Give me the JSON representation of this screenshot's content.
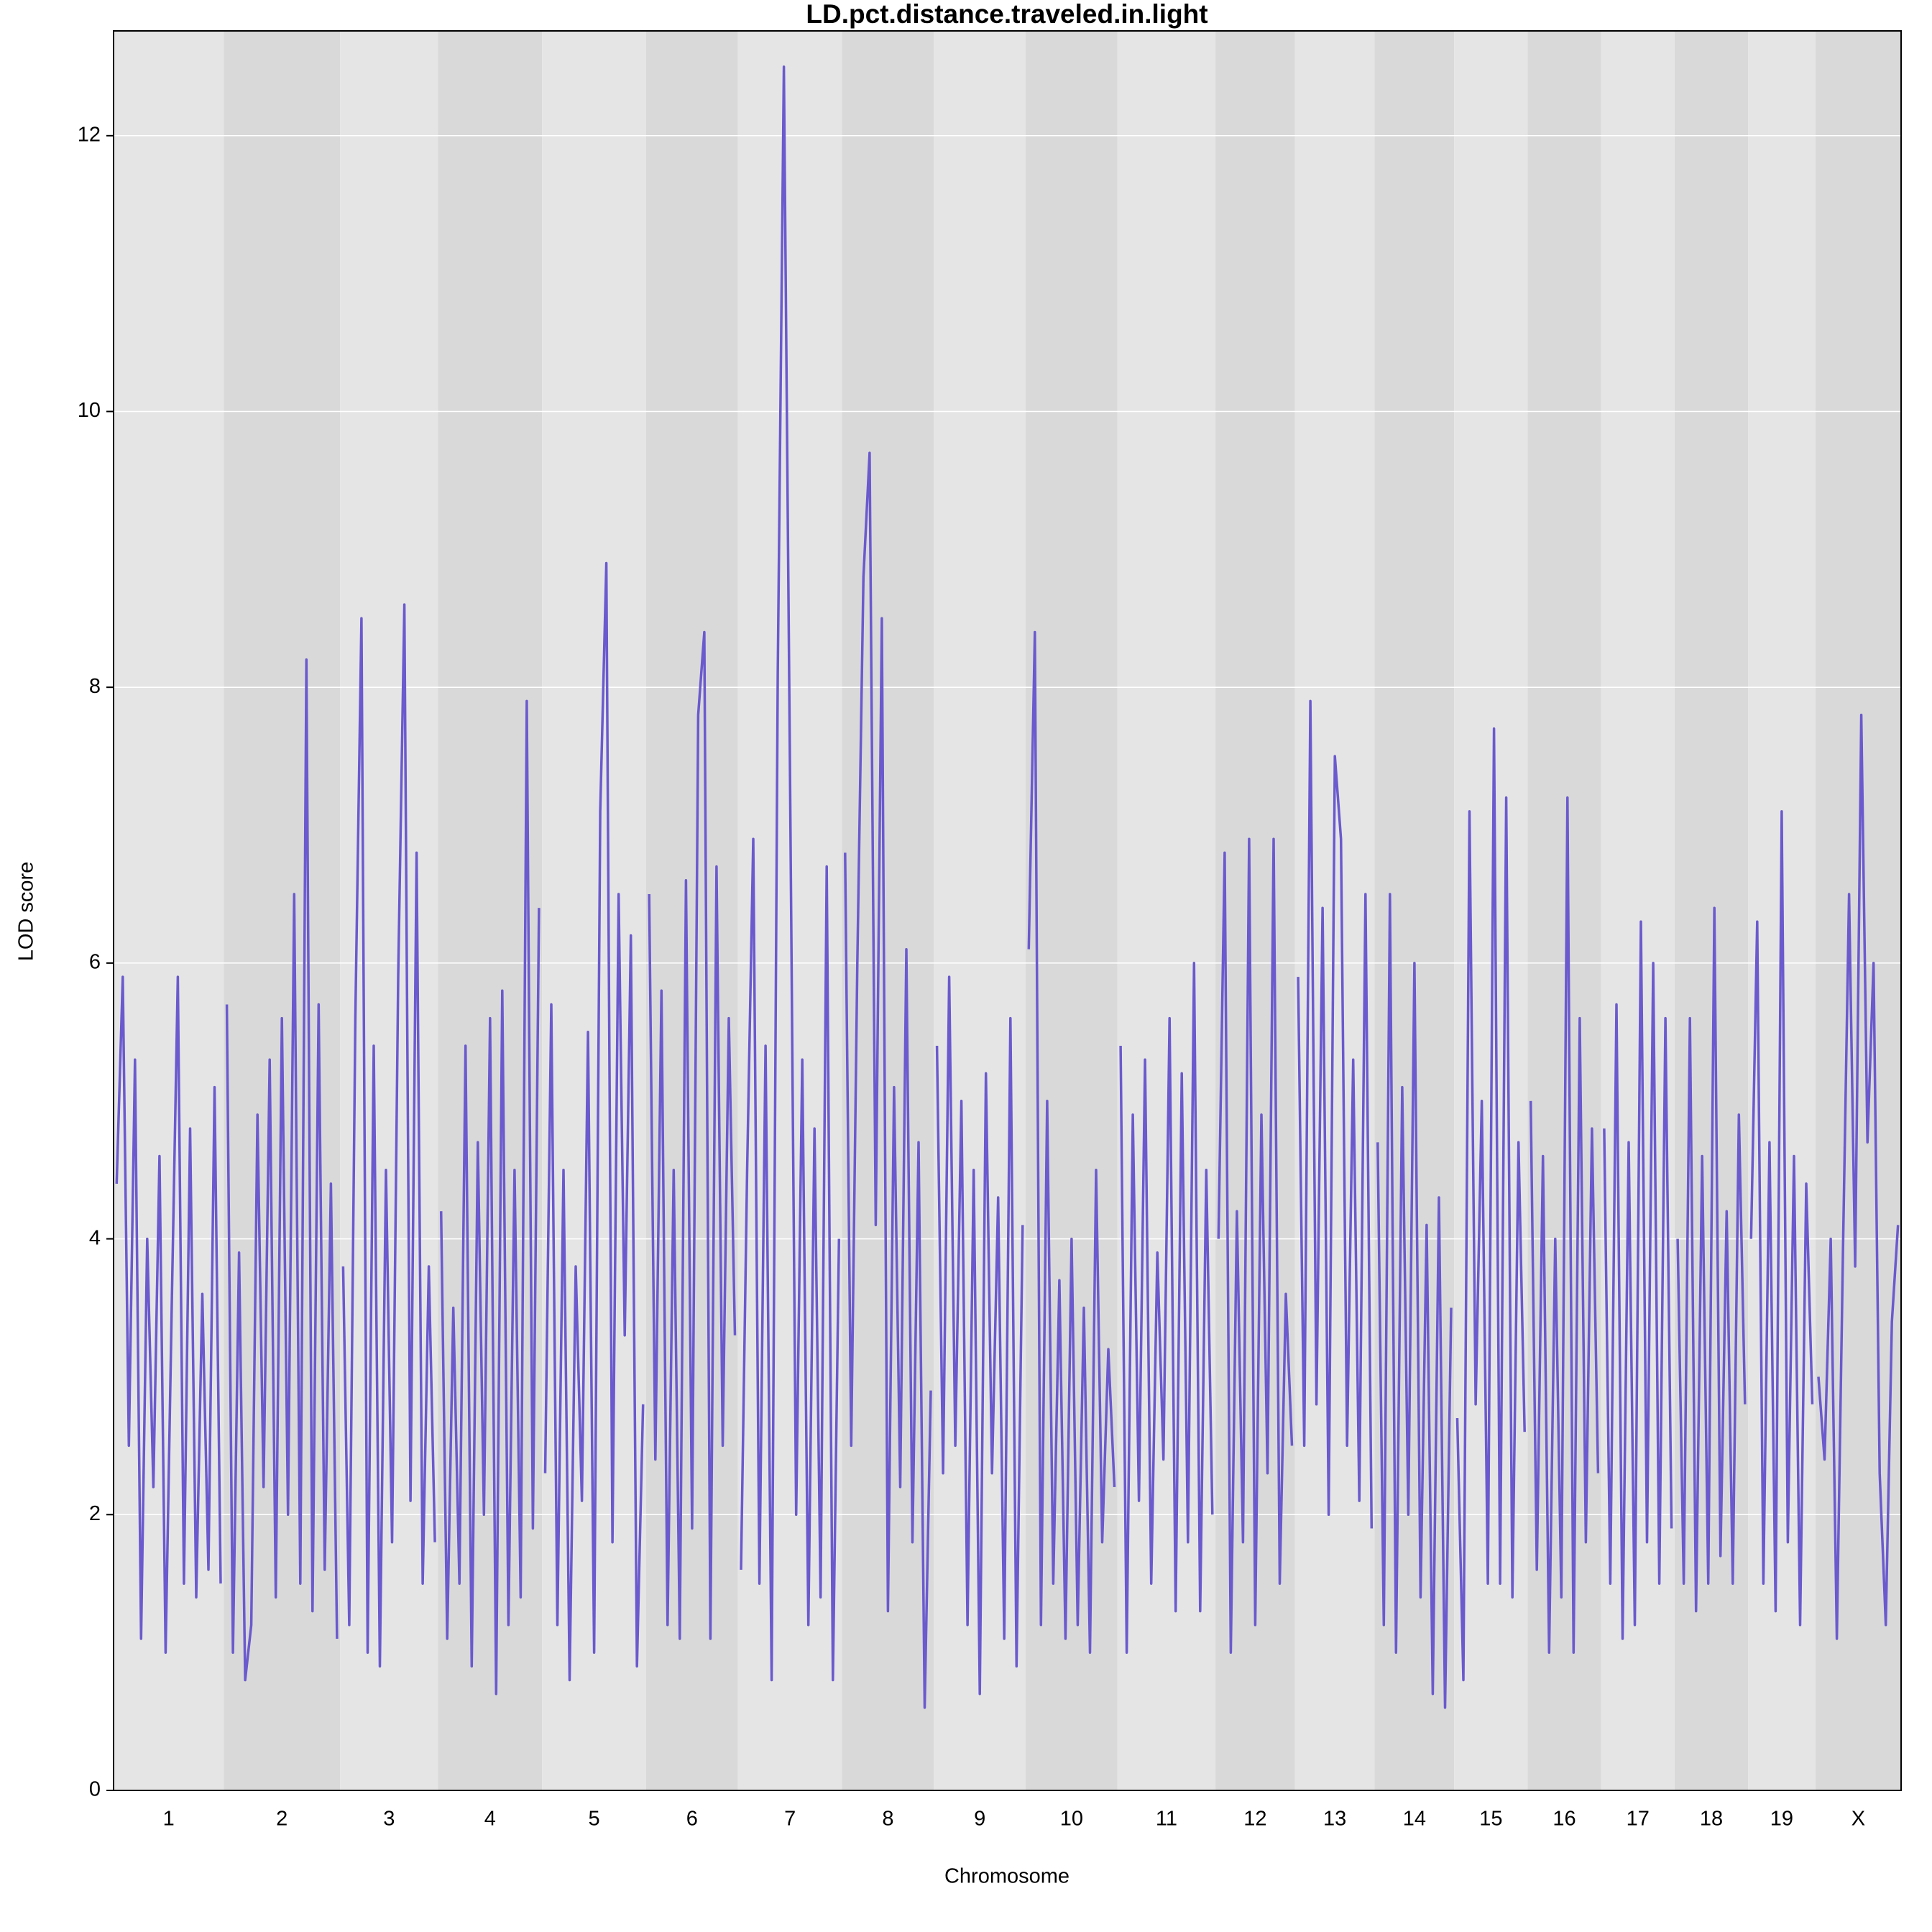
{
  "chart_data": {
    "type": "line",
    "title": "LD.pct.distance.traveled.in.light",
    "x_label": "Chromosome",
    "y_label": "LOD score",
    "categories": [
      "1",
      "2",
      "3",
      "4",
      "5",
      "6",
      "7",
      "8",
      "9",
      "10",
      "11",
      "12",
      "13",
      "14",
      "15",
      "16",
      "17",
      "18",
      "19",
      "X"
    ],
    "values": [
      [
        4.4,
        5.9,
        2.5,
        5.3,
        1.1,
        4.0,
        2.2,
        4.6,
        1.0,
        3.5,
        5.9,
        1.5,
        4.8,
        1.4,
        3.6,
        1.6,
        5.1,
        1.5
      ],
      [
        5.7,
        1.0,
        3.9,
        0.8,
        1.2,
        4.9,
        2.2,
        5.3,
        1.4,
        5.6,
        2.0,
        6.5,
        1.5,
        8.2,
        1.3,
        5.7,
        1.6,
        4.4,
        1.1
      ],
      [
        3.8,
        1.2,
        5.6,
        8.5,
        1.0,
        5.4,
        0.9,
        4.5,
        1.8,
        5.9,
        8.6,
        2.1,
        6.8,
        1.5,
        3.8,
        1.8
      ],
      [
        4.2,
        1.1,
        3.5,
        1.5,
        5.4,
        0.9,
        4.7,
        2.0,
        5.6,
        0.7,
        5.8,
        1.2,
        4.5,
        1.4,
        7.9,
        1.9,
        6.4
      ],
      [
        2.3,
        5.7,
        1.2,
        4.5,
        0.8,
        3.8,
        2.1,
        5.5,
        1.0,
        7.1,
        8.9,
        1.8,
        6.5,
        3.3,
        6.2,
        0.9,
        2.8
      ],
      [
        6.5,
        2.4,
        5.8,
        1.2,
        4.5,
        1.1,
        6.6,
        1.9,
        7.8,
        8.4,
        1.1,
        6.7,
        2.5,
        5.6,
        3.3
      ],
      [
        1.6,
        4.5,
        6.9,
        1.5,
        5.4,
        0.8,
        8.1,
        12.5,
        7.4,
        2.0,
        5.3,
        1.2,
        4.8,
        1.4,
        6.7,
        0.8,
        4.0
      ],
      [
        6.8,
        2.5,
        6.0,
        8.8,
        9.7,
        4.1,
        8.5,
        1.3,
        5.1,
        2.2,
        6.1,
        1.8,
        4.7,
        0.6,
        2.9
      ],
      [
        5.4,
        2.3,
        5.9,
        2.5,
        5.0,
        1.2,
        4.5,
        0.7,
        5.2,
        2.3,
        4.3,
        1.1,
        5.6,
        0.9,
        4.1
      ],
      [
        6.1,
        8.4,
        1.2,
        5.0,
        1.5,
        3.7,
        1.1,
        4.0,
        1.2,
        3.5,
        1.0,
        4.5,
        1.8,
        3.2,
        2.2
      ],
      [
        5.4,
        1.0,
        4.9,
        2.1,
        5.3,
        1.5,
        3.9,
        2.4,
        5.6,
        1.3,
        5.2,
        1.8,
        6.0,
        1.3,
        4.5,
        2.0
      ],
      [
        4.0,
        6.8,
        1.0,
        4.2,
        1.8,
        6.9,
        1.2,
        4.9,
        2.3,
        6.9,
        1.5,
        3.6,
        2.5
      ],
      [
        5.9,
        2.5,
        7.9,
        2.8,
        6.4,
        2.0,
        7.5,
        6.9,
        2.5,
        5.3,
        2.1,
        6.5,
        1.9
      ],
      [
        4.7,
        1.2,
        6.5,
        1.0,
        5.1,
        2.0,
        6.0,
        1.4,
        4.1,
        0.7,
        4.3,
        0.6,
        3.5
      ],
      [
        2.7,
        0.8,
        7.1,
        2.8,
        5.0,
        1.5,
        7.7,
        1.5,
        7.2,
        1.4,
        4.7,
        2.6
      ],
      [
        5.0,
        1.6,
        4.6,
        1.0,
        4.0,
        1.4,
        7.2,
        1.0,
        5.6,
        1.8,
        4.8,
        2.3
      ],
      [
        4.8,
        1.5,
        5.7,
        1.1,
        4.7,
        1.2,
        6.3,
        1.8,
        6.0,
        1.5,
        5.6,
        1.9
      ],
      [
        4.0,
        1.5,
        5.6,
        1.3,
        4.6,
        1.5,
        6.4,
        1.7,
        4.2,
        1.5,
        4.9,
        2.8
      ],
      [
        4.0,
        6.3,
        1.5,
        4.7,
        1.3,
        7.1,
        1.8,
        4.6,
        1.2,
        4.4,
        2.8
      ],
      [
        3.0,
        2.4,
        4.0,
        1.1,
        3.9,
        6.5,
        3.8,
        7.8,
        4.7,
        6.0,
        2.3,
        1.2,
        3.4,
        4.1
      ]
    ],
    "color": "#6a5acd",
    "band_colors": [
      "#e5e5e5",
      "#d9d9d9"
    ],
    "ylim": [
      0,
      12.76
    ],
    "yticks": [
      0,
      2,
      4,
      6,
      8,
      10,
      12
    ],
    "grid": true
  }
}
